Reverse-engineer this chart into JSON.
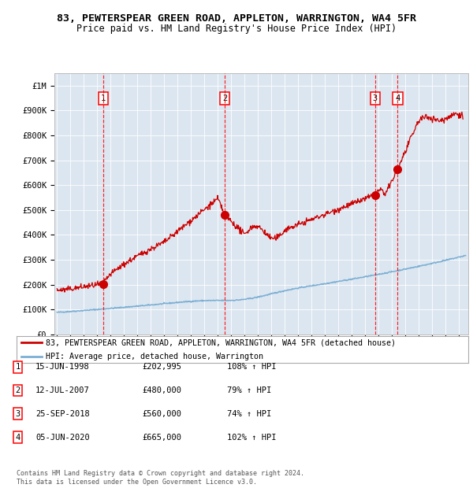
{
  "title1": "83, PEWTERSPEAR GREEN ROAD, APPLETON, WARRINGTON, WA4 5FR",
  "title2": "Price paid vs. HM Land Registry's House Price Index (HPI)",
  "ylabel_ticks": [
    "£0",
    "£100K",
    "£200K",
    "£300K",
    "£400K",
    "£500K",
    "£600K",
    "£700K",
    "£800K",
    "£900K",
    "£1M"
  ],
  "ytick_values": [
    0,
    100000,
    200000,
    300000,
    400000,
    500000,
    600000,
    700000,
    800000,
    900000,
    1000000
  ],
  "ylim": [
    0,
    1050000
  ],
  "xlim_start": 1994.8,
  "xlim_end": 2025.7,
  "sale_dates": [
    1998.46,
    2007.53,
    2018.73,
    2020.43
  ],
  "sale_prices": [
    202995,
    480000,
    560000,
    665000
  ],
  "sale_labels": [
    "1",
    "2",
    "3",
    "4"
  ],
  "red_line_color": "#cc0000",
  "blue_line_color": "#7bafd4",
  "bg_color": "#dce6f0",
  "legend_line1": "83, PEWTERSPEAR GREEN ROAD, APPLETON, WARRINGTON, WA4 5FR (detached house)",
  "legend_line2": "HPI: Average price, detached house, Warrington",
  "table_rows": [
    [
      "1",
      "15-JUN-1998",
      "£202,995",
      "108% ↑ HPI"
    ],
    [
      "2",
      "12-JUL-2007",
      "£480,000",
      "79% ↑ HPI"
    ],
    [
      "3",
      "25-SEP-2018",
      "£560,000",
      "74% ↑ HPI"
    ],
    [
      "4",
      "05-JUN-2020",
      "£665,000",
      "102% ↑ HPI"
    ]
  ],
  "footnote": "Contains HM Land Registry data © Crown copyright and database right 2024.\nThis data is licensed under the Open Government Licence v3.0.",
  "title_fontsize": 9.5,
  "subtitle_fontsize": 8.5
}
